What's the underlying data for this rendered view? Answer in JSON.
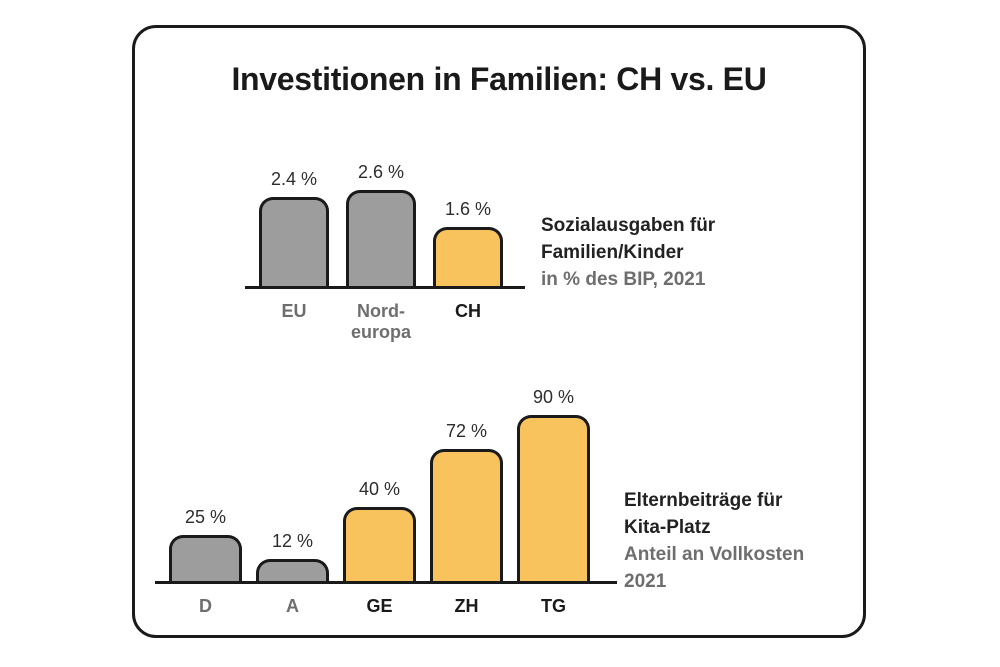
{
  "title": "Investitionen in Familien: CH vs. EU",
  "colors": {
    "ink": "#1a1a1a",
    "bar_muted": "#9d9d9d",
    "bar_highlight": "#f8c35c",
    "text_muted": "#6e6e6e",
    "value_text": "#2d2d2d"
  },
  "chart_data": [
    {
      "type": "bar",
      "categories": [
        "EU",
        "Nord-\neuropa",
        "CH"
      ],
      "values": [
        2.4,
        2.6,
        1.6
      ],
      "value_labels": [
        "2.4 %",
        "2.6 %",
        "1.6 %"
      ],
      "highlight": [
        false,
        false,
        true
      ],
      "ylim": [
        0,
        3
      ],
      "grid": false,
      "caption": {
        "bold_lines": [
          "Sozialausgaben für",
          "Familien/Kinder"
        ],
        "gray_lines": [
          "in % des BIP, 2021"
        ]
      }
    },
    {
      "type": "bar",
      "categories": [
        "D",
        "A",
        "GE",
        "ZH",
        "TG"
      ],
      "values": [
        25,
        12,
        40,
        72,
        90
      ],
      "value_labels": [
        "25 %",
        "12 %",
        "40 %",
        "72 %",
        "90 %"
      ],
      "highlight": [
        false,
        false,
        true,
        true,
        true
      ],
      "ylim": [
        0,
        100
      ],
      "grid": false,
      "caption": {
        "bold_lines": [
          "Elternbeiträge für",
          "Kita-Platz"
        ],
        "gray_lines": [
          "Anteil an Vollkosten",
          "2021"
        ]
      }
    }
  ]
}
